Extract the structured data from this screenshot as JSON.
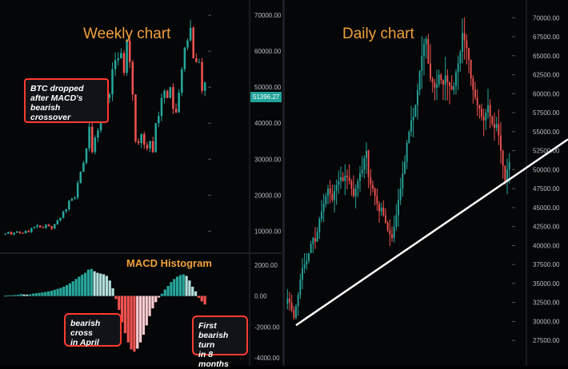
{
  "chart_data": [
    {
      "type": "candlestick",
      "title": "Weekly chart",
      "y_ticks": [
        "70000.00",
        "60000.00",
        "50000.00",
        "40000.00",
        "30000.00",
        "20000.00",
        "10000.00"
      ],
      "current_price": "51396.27",
      "ylim": [
        5000,
        72000
      ],
      "values": [
        9300,
        9800,
        9100,
        9600,
        9900,
        9500,
        9400,
        10100,
        9700,
        10800,
        11200,
        11600,
        11100,
        10900,
        11800,
        11400,
        10700,
        11900,
        13000,
        13700,
        15500,
        16100,
        18500,
        19000,
        19300,
        23400,
        26500,
        29000,
        33000,
        39000,
        32000,
        36000,
        38000,
        46000,
        49000,
        47000,
        48000,
        55000,
        57500,
        58000,
        59500,
        54000,
        63000,
        57000,
        48000,
        35000,
        34500,
        37000,
        34000,
        33000,
        35000,
        32000,
        40000,
        42000,
        47000,
        49000,
        47000,
        50000,
        44000,
        43000,
        48500,
        55000,
        61000,
        63000,
        66500,
        58000,
        57000,
        57000,
        49000,
        51396
      ],
      "annotation": [
        "BTC dropped",
        "after MACD's bearish",
        "crossover"
      ]
    },
    {
      "type": "bar",
      "title": "MACD Histogram",
      "y_ticks": [
        "2000.00",
        "0.00",
        "-2000.00",
        "-4000.00"
      ],
      "ylim": [
        -4200,
        2300
      ],
      "values": [
        20,
        40,
        50,
        60,
        80,
        120,
        100,
        90,
        110,
        150,
        180,
        200,
        230,
        260,
        300,
        340,
        400,
        460,
        520,
        600,
        700,
        820,
        950,
        1100,
        1250,
        1380,
        1500,
        1700,
        1750,
        1600,
        1500,
        1450,
        1400,
        1300,
        1000,
        500,
        -200,
        -900,
        -1700,
        -2400,
        -3000,
        -3450,
        -3600,
        -3400,
        -3000,
        -2500,
        -1900,
        -1300,
        -800,
        -400,
        -100,
        150,
        420,
        650,
        900,
        1100,
        1250,
        1350,
        1400,
        1300,
        1000,
        600,
        300,
        -120,
        -350,
        -550
      ],
      "annotations": [
        {
          "lines": [
            "bearish cross",
            "in April"
          ]
        },
        {
          "lines": [
            "First bearish",
            "turn",
            "in 8 months"
          ]
        }
      ]
    },
    {
      "type": "candlestick",
      "title": "Daily chart",
      "y_ticks": [
        "70000.00",
        "67500.00",
        "65000.00",
        "62500.00",
        "60000.00",
        "57500.00",
        "55000.00",
        "52500.00",
        "50000.00",
        "47500.00",
        "45000.00",
        "42500.00",
        "40000.00",
        "37500.00",
        "35000.00",
        "32500.00",
        "30000.00",
        "27500.00"
      ],
      "ylim": [
        25000,
        71500
      ],
      "values": [
        33000,
        32500,
        31500,
        30500,
        32000,
        33500,
        35500,
        37000,
        37500,
        38000,
        39000,
        40200,
        41000,
        40500,
        41800,
        43500,
        44500,
        45500,
        46500,
        47500,
        46800,
        46000,
        47200,
        48000,
        48500,
        49000,
        48500,
        49200,
        49000,
        48500,
        47500,
        46500,
        47500,
        48500,
        49500,
        50000,
        51500,
        52500,
        49000,
        48000,
        47500,
        46500,
        45500,
        44500,
        45000,
        44000,
        43000,
        42000,
        41500,
        41000,
        42500,
        44000,
        46000,
        47500,
        49500,
        51000,
        53500,
        55000,
        56500,
        57000,
        58500,
        60500,
        63000,
        65000,
        66500,
        67200,
        64000,
        62000,
        61500,
        60800,
        61200,
        62500,
        61800,
        61200,
        62400,
        61500,
        61000,
        60500,
        61000,
        62800,
        64000,
        65500,
        68000,
        67000,
        66000,
        64500,
        62000,
        60500,
        59500,
        58500,
        58000,
        57000,
        56500,
        57500,
        58500,
        57000,
        56000,
        55500,
        56000,
        54500,
        52500,
        50500,
        48500,
        50000,
        51000
      ],
      "trendline": {
        "from": [
          0,
          29500
        ],
        "to": [
          1,
          54000
        ]
      }
    }
  ]
}
